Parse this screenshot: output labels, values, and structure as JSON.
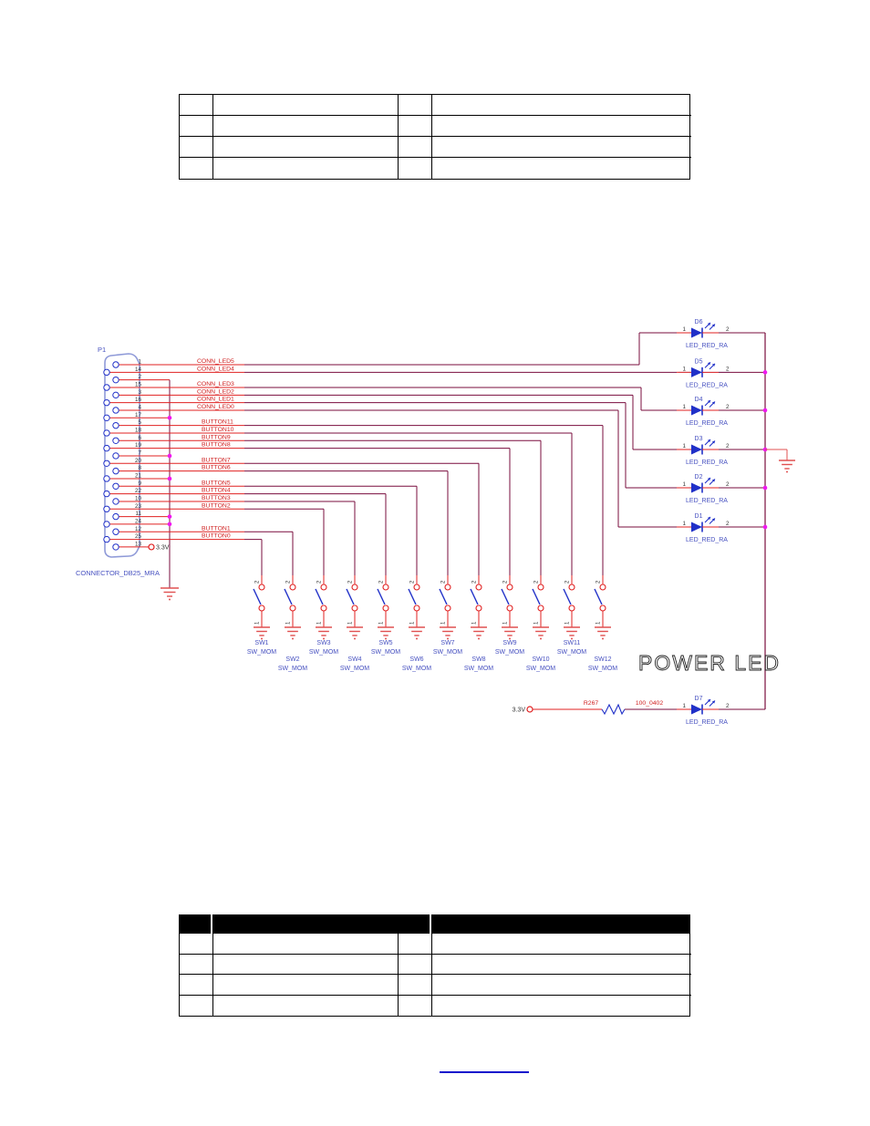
{
  "schematic": {
    "connector": {
      "ref": "P1",
      "part": "CONNECTOR_DB25_MRA",
      "supply": "3.3V"
    },
    "pins": [
      {
        "num": "1",
        "signal": "CONN_LED5"
      },
      {
        "num": "14",
        "signal": "CONN_LED4"
      },
      {
        "num": "2",
        "signal": ""
      },
      {
        "num": "15",
        "signal": "CONN_LED3"
      },
      {
        "num": "3",
        "signal": "CONN_LED2"
      },
      {
        "num": "16",
        "signal": "CONN_LED1"
      },
      {
        "num": "4",
        "signal": "CONN_LED0"
      },
      {
        "num": "17",
        "signal": ""
      },
      {
        "num": "5",
        "signal": "BUTTON11"
      },
      {
        "num": "18",
        "signal": "BUTTON10"
      },
      {
        "num": "6",
        "signal": "BUTTON9"
      },
      {
        "num": "19",
        "signal": "BUTTON8"
      },
      {
        "num": "7",
        "signal": ""
      },
      {
        "num": "20",
        "signal": "BUTTON7"
      },
      {
        "num": "8",
        "signal": "BUTTON6"
      },
      {
        "num": "21",
        "signal": ""
      },
      {
        "num": "9",
        "signal": "BUTTON5"
      },
      {
        "num": "22",
        "signal": "BUTTON4"
      },
      {
        "num": "10",
        "signal": "BUTTON3"
      },
      {
        "num": "23",
        "signal": "BUTTON2"
      },
      {
        "num": "11",
        "signal": ""
      },
      {
        "num": "24",
        "signal": ""
      },
      {
        "num": "12",
        "signal": "BUTTON1"
      },
      {
        "num": "25",
        "signal": "BUTTON0"
      },
      {
        "num": "13",
        "signal": "3.3V"
      }
    ],
    "pin1_label": "1",
    "pin2_label": "2",
    "led_part": "LED_RED_RA",
    "leds": [
      {
        "ref": "D6"
      },
      {
        "ref": "D5"
      },
      {
        "ref": "D4"
      },
      {
        "ref": "D3"
      },
      {
        "ref": "D2"
      },
      {
        "ref": "D1"
      }
    ],
    "switch_part": "SW_MOM",
    "switches": [
      {
        "ref": "SW1"
      },
      {
        "ref": "SW2"
      },
      {
        "ref": "SW3"
      },
      {
        "ref": "SW4"
      },
      {
        "ref": "SW5"
      },
      {
        "ref": "SW6"
      },
      {
        "ref": "SW7"
      },
      {
        "ref": "SW8"
      },
      {
        "ref": "SW9"
      },
      {
        "ref": "SW10"
      },
      {
        "ref": "SW11"
      },
      {
        "ref": "SW12"
      }
    ],
    "power_led": {
      "title": "POWER LED",
      "ref": "D7",
      "part": "LED_RED_RA",
      "supply": "3.3V",
      "resistor_ref": "R267",
      "resistor_value": "100_0402"
    }
  },
  "colors": {
    "wire_red": "#e02020",
    "wire_maroon": "#7a0d3e",
    "text_red": "#cf2020",
    "component_blue": "#2030c8",
    "label_blue": "#4650c0",
    "light_blue": "#aab6e8",
    "connector_outline": "#8f9ad8",
    "junction_magenta": "#f018f0",
    "ground_red": "#e05050",
    "dark_text": "#333333",
    "link_blue": "#1111cc"
  }
}
